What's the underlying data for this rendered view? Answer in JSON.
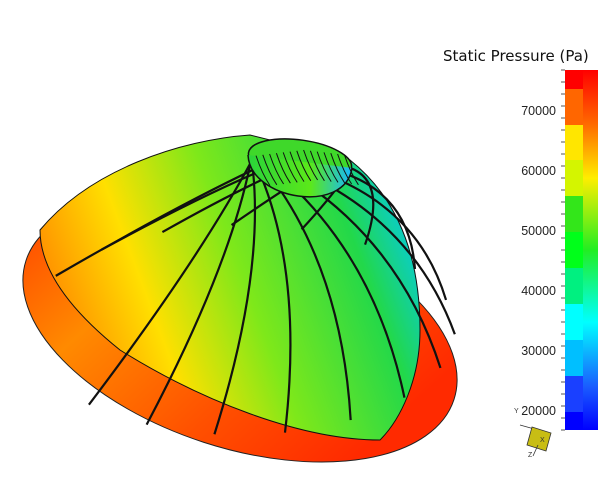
{
  "legend": {
    "title": "Static Pressure (Pa)",
    "tick_labels": [
      "70000",
      "60000",
      "50000",
      "40000",
      "30000",
      "20000"
    ],
    "tick_values": [
      70000,
      60000,
      50000,
      40000,
      30000,
      20000
    ],
    "range": [
      17000,
      77000
    ],
    "band_colors": [
      "#ff0000",
      "#ff6600",
      "#ffe600",
      "#d4f500",
      "#33e61a",
      "#00ff1a",
      "#00f080",
      "#00ffff",
      "#00bfff",
      "#1a40ff",
      "#0000ff"
    ],
    "colormap": "rainbow (blue-cyan-green-yellow-red)"
  },
  "axes_triad": {
    "x": "X",
    "y": "Y",
    "z": "Z"
  }
}
